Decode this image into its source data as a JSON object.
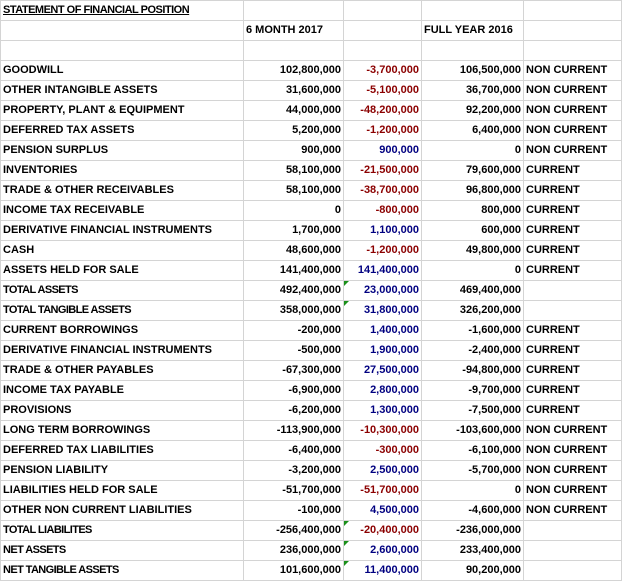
{
  "title": "STATEMENT OF FINANCIAL POSITION",
  "headers": {
    "period1": "6 MONTH 2017",
    "period2": "FULL YEAR 2016"
  },
  "rows": [
    {
      "label": "GOODWILL",
      "v2017": "102,800,000",
      "change": "-3,700,000",
      "change_dir": "neg",
      "v2016": "106,500,000",
      "class": "NON CURRENT"
    },
    {
      "label": "OTHER INTANGIBLE ASSETS",
      "v2017": "31,600,000",
      "change": "-5,100,000",
      "change_dir": "neg",
      "v2016": "36,700,000",
      "class": "NON CURRENT"
    },
    {
      "label": "PROPERTY, PLANT & EQUIPMENT",
      "v2017": "44,000,000",
      "change": "-48,200,000",
      "change_dir": "neg",
      "v2016": "92,200,000",
      "class": "NON CURRENT"
    },
    {
      "label": "DEFERRED TAX ASSETS",
      "v2017": "5,200,000",
      "change": "-1,200,000",
      "change_dir": "neg",
      "v2016": "6,400,000",
      "class": "NON CURRENT"
    },
    {
      "label": "PENSION SURPLUS",
      "v2017": "900,000",
      "change": "900,000",
      "change_dir": "pos",
      "v2016": "0",
      "class": "NON CURRENT"
    },
    {
      "label": "INVENTORIES",
      "v2017": "58,100,000",
      "change": "-21,500,000",
      "change_dir": "neg",
      "v2016": "79,600,000",
      "class": "CURRENT"
    },
    {
      "label": "TRADE & OTHER RECEIVABLES",
      "v2017": "58,100,000",
      "change": "-38,700,000",
      "change_dir": "neg",
      "v2016": "96,800,000",
      "class": "CURRENT"
    },
    {
      "label": "INCOME TAX RECEIVABLE",
      "v2017": "0",
      "change": "-800,000",
      "change_dir": "neg",
      "v2016": "800,000",
      "class": "CURRENT"
    },
    {
      "label": "DERIVATIVE FINANCIAL INSTRUMENTS",
      "v2017": "1,700,000",
      "change": "1,100,000",
      "change_dir": "pos",
      "v2016": "600,000",
      "class": "CURRENT"
    },
    {
      "label": "CASH",
      "v2017": "48,600,000",
      "change": "-1,200,000",
      "change_dir": "neg",
      "v2016": "49,800,000",
      "class": "CURRENT"
    },
    {
      "label": "ASSETS HELD FOR SALE",
      "v2017": "141,400,000",
      "change": "141,400,000",
      "change_dir": "pos",
      "v2016": "0",
      "class": "CURRENT"
    },
    {
      "label": "TOTAL ASSETS",
      "v2017": "492,400,000",
      "change": "23,000,000",
      "change_dir": "pos",
      "v2016": "469,400,000",
      "class": "",
      "flag": true,
      "tight": true
    },
    {
      "label": "TOTAL TANGIBLE ASSETS",
      "v2017": "358,000,000",
      "change": "31,800,000",
      "change_dir": "pos",
      "v2016": "326,200,000",
      "class": "",
      "flag": true,
      "tight": true
    },
    {
      "label": "CURRENT BORROWINGS",
      "v2017": "-200,000",
      "change": "1,400,000",
      "change_dir": "pos",
      "v2016": "-1,600,000",
      "class": "CURRENT"
    },
    {
      "label": "DERIVATIVE FINANCIAL INSTRUMENTS",
      "v2017": "-500,000",
      "change": "1,900,000",
      "change_dir": "pos",
      "v2016": "-2,400,000",
      "class": "CURRENT"
    },
    {
      "label": "TRADE & OTHER PAYABLES",
      "v2017": "-67,300,000",
      "change": "27,500,000",
      "change_dir": "pos",
      "v2016": "-94,800,000",
      "class": "CURRENT"
    },
    {
      "label": "INCOME TAX PAYABLE",
      "v2017": "-6,900,000",
      "change": "2,800,000",
      "change_dir": "pos",
      "v2016": "-9,700,000",
      "class": "CURRENT"
    },
    {
      "label": "PROVISIONS",
      "v2017": "-6,200,000",
      "change": "1,300,000",
      "change_dir": "pos",
      "v2016": "-7,500,000",
      "class": "CURRENT"
    },
    {
      "label": "LONG TERM BORROWINGS",
      "v2017": "-113,900,000",
      "change": "-10,300,000",
      "change_dir": "neg",
      "v2016": "-103,600,000",
      "class": "NON CURRENT"
    },
    {
      "label": "DEFERRED TAX LIABILITIES",
      "v2017": "-6,400,000",
      "change": "-300,000",
      "change_dir": "neg",
      "v2016": "-6,100,000",
      "class": "NON CURRENT"
    },
    {
      "label": "PENSION LIABILITY",
      "v2017": "-3,200,000",
      "change": "2,500,000",
      "change_dir": "pos",
      "v2016": "-5,700,000",
      "class": "NON CURRENT"
    },
    {
      "label": "LIABILITIES HELD FOR SALE",
      "v2017": "-51,700,000",
      "change": "-51,700,000",
      "change_dir": "neg",
      "v2016": "0",
      "class": "NON CURRENT"
    },
    {
      "label": "OTHER NON CURRENT LIABILITIES",
      "v2017": "-100,000",
      "change": "4,500,000",
      "change_dir": "pos",
      "v2016": "-4,600,000",
      "class": "NON CURRENT"
    },
    {
      "label": "TOTAL LIABILITES",
      "v2017": "-256,400,000",
      "change": "-20,400,000",
      "change_dir": "neg",
      "v2016": "-236,000,000",
      "class": "",
      "flag": true,
      "tight": true
    },
    {
      "label": "NET ASSETS",
      "v2017": "236,000,000",
      "change": "2,600,000",
      "change_dir": "pos",
      "v2016": "233,400,000",
      "class": "",
      "flag": true,
      "tight": true
    },
    {
      "label": "NET TANGIBLE ASSETS",
      "v2017": "101,600,000",
      "change": "11,400,000",
      "change_dir": "pos",
      "v2016": "90,200,000",
      "class": "",
      "flag": true,
      "tight": true
    }
  ],
  "colors": {
    "negative": "#8b0000",
    "positive": "#000080",
    "gridline": "#d4d4d4",
    "comment_flag": "#1a8f1a"
  }
}
